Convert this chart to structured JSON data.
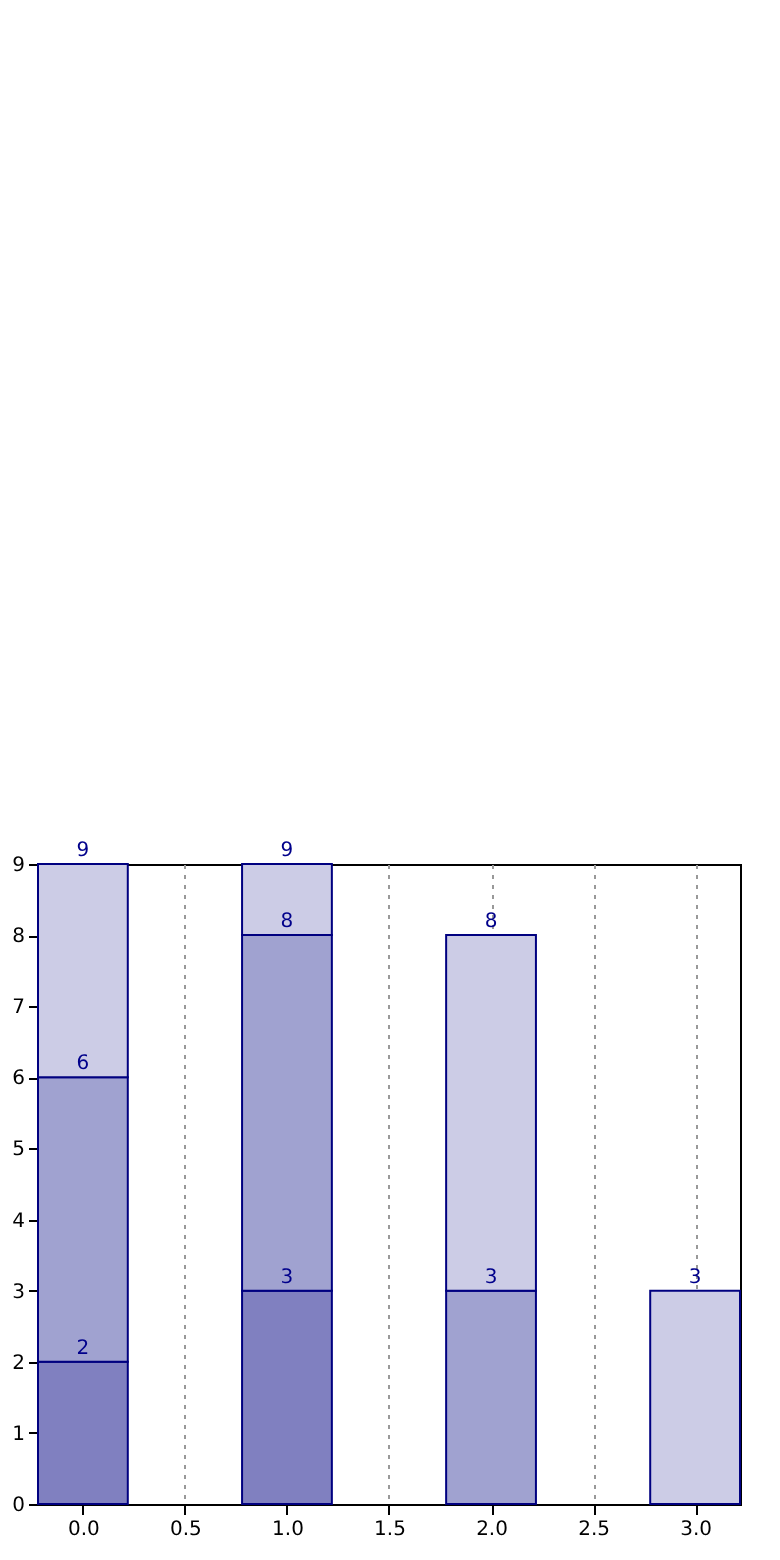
{
  "chart_data": {
    "type": "bar",
    "stacked": true,
    "x": [
      0,
      1,
      2,
      3
    ],
    "series": [
      {
        "color": "#8080c0",
        "values": [
          2,
          3,
          null,
          null
        ],
        "value_labels": [
          "2",
          "3",
          null,
          null
        ]
      },
      {
        "color": "#a0a2d0",
        "values": [
          4,
          5,
          3,
          null
        ]
      },
      {
        "color": "#cccce6",
        "values": [
          3,
          1,
          5,
          3
        ],
        "value_labels": [
          null,
          null,
          null,
          "3"
        ]
      }
    ],
    "annotations": [
      {
        "text": "6",
        "x": 0,
        "y": 6
      },
      {
        "text": "9",
        "x": 0,
        "y": 9
      },
      {
        "text": "8",
        "x": 1,
        "y": 8
      },
      {
        "text": "9",
        "x": 1,
        "y": 9
      },
      {
        "text": "3",
        "x": 2,
        "y": 3
      },
      {
        "text": "8",
        "x": 2,
        "y": 8
      }
    ],
    "xlim": [
      -0.22,
      3.22
    ],
    "xticks": [
      {
        "value": 0,
        "label": "0.0"
      },
      {
        "value": 0.5,
        "label": "0.5"
      },
      {
        "value": 1,
        "label": "1.0"
      },
      {
        "value": 1.5,
        "label": "1.5"
      },
      {
        "value": 2,
        "label": "2.0"
      },
      {
        "value": 2.5,
        "label": "2.5"
      },
      {
        "value": 3,
        "label": "3.0"
      }
    ],
    "ylim": [
      0,
      9
    ],
    "yticks": [
      0,
      1,
      2,
      3,
      4,
      5,
      6,
      7,
      8,
      9
    ],
    "grid": "x"
  }
}
